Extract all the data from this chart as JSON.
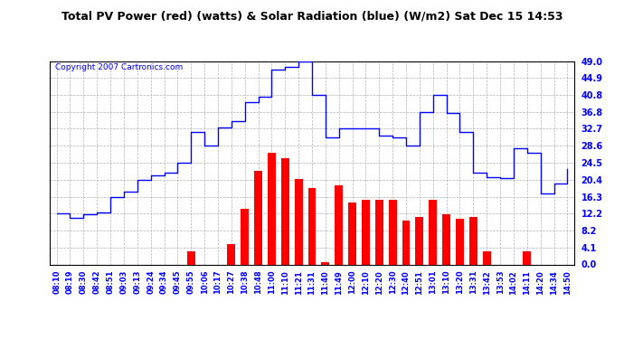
{
  "title": "Total PV Power (red) (watts) & Solar Radiation (blue) (W/m2) Sat Dec 15 14:53",
  "copyright": "Copyright 2007 Cartronics.com",
  "background_color": "#ffffff",
  "plot_bg_color": "#ffffff",
  "grid_color": "#b0b0b0",
  "yticks": [
    0.0,
    4.1,
    8.2,
    12.2,
    16.3,
    20.4,
    24.5,
    28.6,
    32.7,
    36.8,
    40.8,
    44.9,
    49.0
  ],
  "ylim": [
    0.0,
    49.0
  ],
  "time_labels": [
    "08:10",
    "08:19",
    "08:30",
    "08:42",
    "08:51",
    "09:03",
    "09:13",
    "09:24",
    "09:34",
    "09:45",
    "09:55",
    "10:06",
    "10:17",
    "10:27",
    "10:38",
    "10:48",
    "11:00",
    "11:10",
    "11:21",
    "11:31",
    "11:40",
    "11:49",
    "12:00",
    "12:10",
    "12:20",
    "12:30",
    "12:40",
    "12:51",
    "13:01",
    "13:10",
    "13:20",
    "13:31",
    "13:42",
    "13:53",
    "14:02",
    "14:11",
    "14:20",
    "14:34",
    "14:50"
  ],
  "blue_y": [
    12.2,
    11.2,
    12.0,
    12.5,
    16.3,
    17.5,
    20.4,
    21.5,
    22.0,
    24.5,
    32.0,
    28.6,
    33.0,
    34.5,
    39.0,
    40.5,
    47.0,
    47.5,
    48.8,
    40.8,
    30.5,
    32.7,
    32.7,
    32.7,
    31.0,
    30.5,
    28.6,
    36.8,
    40.8,
    36.5,
    32.0,
    22.0,
    21.0,
    20.8,
    28.0,
    27.0,
    17.0,
    19.5,
    23.0
  ],
  "red_bars_data": [
    [
      "09:55",
      3.2
    ],
    [
      "10:27",
      5.0
    ],
    [
      "10:38",
      13.5
    ],
    [
      "10:48",
      22.5
    ],
    [
      "11:00",
      27.0
    ],
    [
      "11:10",
      25.5
    ],
    [
      "11:21",
      20.5
    ],
    [
      "11:31",
      18.5
    ],
    [
      "11:40",
      0.5
    ],
    [
      "11:49",
      19.0
    ],
    [
      "12:00",
      15.0
    ],
    [
      "12:10",
      15.5
    ],
    [
      "12:20",
      15.5
    ],
    [
      "12:30",
      15.5
    ],
    [
      "12:40",
      10.5
    ],
    [
      "12:51",
      11.5
    ],
    [
      "13:01",
      15.5
    ],
    [
      "13:10",
      12.0
    ],
    [
      "13:20",
      11.0
    ],
    [
      "13:31",
      11.5
    ],
    [
      "13:42",
      3.2
    ],
    [
      "14:11",
      3.2
    ]
  ]
}
